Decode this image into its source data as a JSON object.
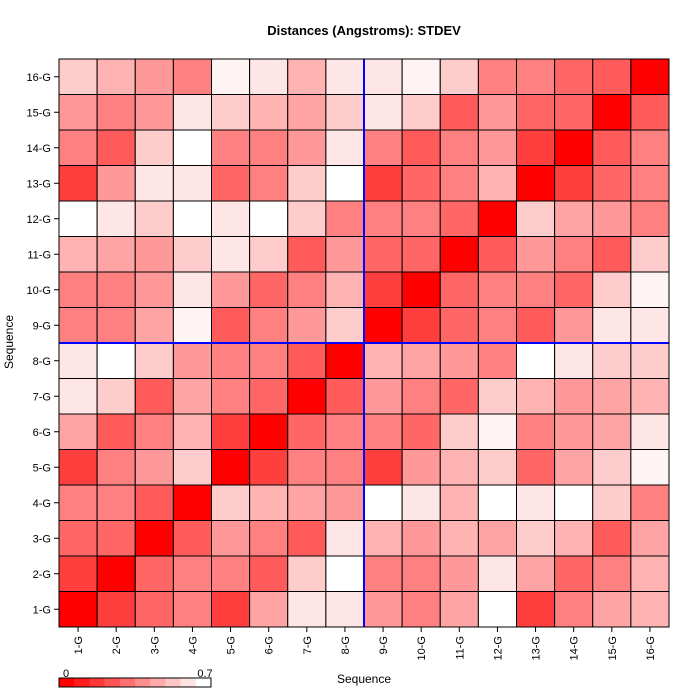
{
  "chart_data": {
    "type": "heatmap",
    "title": "Distances (Angstroms):  STDEV",
    "xlabel": "Sequence",
    "ylabel": "Sequence",
    "categories": [
      "1-G",
      "2-G",
      "3-G",
      "4-G",
      "5-G",
      "6-G",
      "7-G",
      "8-G",
      "9-G",
      "10-G",
      "11-G",
      "12-G",
      "13-G",
      "14-G",
      "15-G",
      "16-G"
    ],
    "value_range": [
      0,
      0.7
    ],
    "colorbar_labels": [
      "0",
      "0.7"
    ],
    "colorbar_steps": 10,
    "color_low": "#ff0000",
    "color_high": "#ffffff",
    "divider_after_index": 8,
    "divider_color": "#0000ff",
    "matrix_rows_bottom_to_top": [
      [
        0.0,
        0.17,
        0.28,
        0.35,
        0.17,
        0.45,
        0.63,
        0.63,
        0.42,
        0.35,
        0.45,
        0.7,
        0.17,
        0.35,
        0.45,
        0.49
      ],
      [
        0.17,
        0.0,
        0.28,
        0.35,
        0.35,
        0.25,
        0.56,
        0.7,
        0.35,
        0.35,
        0.42,
        0.63,
        0.45,
        0.28,
        0.35,
        0.49
      ],
      [
        0.28,
        0.28,
        0.0,
        0.25,
        0.42,
        0.35,
        0.25,
        0.63,
        0.49,
        0.42,
        0.49,
        0.45,
        0.56,
        0.49,
        0.25,
        0.45
      ],
      [
        0.35,
        0.35,
        0.25,
        0.0,
        0.56,
        0.49,
        0.45,
        0.42,
        0.7,
        0.63,
        0.49,
        0.7,
        0.63,
        0.7,
        0.56,
        0.35
      ],
      [
        0.17,
        0.35,
        0.42,
        0.56,
        0.0,
        0.17,
        0.35,
        0.35,
        0.17,
        0.42,
        0.49,
        0.56,
        0.28,
        0.45,
        0.56,
        0.67
      ],
      [
        0.45,
        0.25,
        0.35,
        0.49,
        0.17,
        0.0,
        0.28,
        0.35,
        0.35,
        0.28,
        0.56,
        0.67,
        0.35,
        0.42,
        0.45,
        0.63
      ],
      [
        0.63,
        0.56,
        0.25,
        0.45,
        0.35,
        0.28,
        0.0,
        0.25,
        0.42,
        0.35,
        0.28,
        0.56,
        0.49,
        0.42,
        0.45,
        0.49
      ],
      [
        0.63,
        0.7,
        0.56,
        0.42,
        0.35,
        0.35,
        0.25,
        0.0,
        0.49,
        0.45,
        0.42,
        0.35,
        0.7,
        0.63,
        0.56,
        0.56
      ],
      [
        0.35,
        0.35,
        0.45,
        0.67,
        0.25,
        0.35,
        0.42,
        0.56,
        0.0,
        0.17,
        0.28,
        0.35,
        0.25,
        0.42,
        0.63,
        0.63
      ],
      [
        0.35,
        0.35,
        0.42,
        0.63,
        0.42,
        0.28,
        0.35,
        0.49,
        0.17,
        0.0,
        0.28,
        0.35,
        0.35,
        0.28,
        0.56,
        0.67
      ],
      [
        0.49,
        0.45,
        0.42,
        0.56,
        0.63,
        0.56,
        0.25,
        0.42,
        0.28,
        0.28,
        0.0,
        0.25,
        0.42,
        0.35,
        0.25,
        0.56
      ],
      [
        0.7,
        0.63,
        0.56,
        0.7,
        0.63,
        0.7,
        0.56,
        0.35,
        0.35,
        0.35,
        0.28,
        0.0,
        0.56,
        0.45,
        0.42,
        0.35
      ],
      [
        0.17,
        0.42,
        0.63,
        0.63,
        0.28,
        0.35,
        0.56,
        0.7,
        0.17,
        0.28,
        0.35,
        0.49,
        0.0,
        0.17,
        0.28,
        0.35
      ],
      [
        0.35,
        0.25,
        0.56,
        0.7,
        0.35,
        0.35,
        0.42,
        0.63,
        0.35,
        0.25,
        0.35,
        0.42,
        0.17,
        0.0,
        0.25,
        0.35
      ],
      [
        0.42,
        0.35,
        0.42,
        0.63,
        0.56,
        0.49,
        0.45,
        0.56,
        0.63,
        0.56,
        0.25,
        0.42,
        0.28,
        0.28,
        0.0,
        0.25
      ],
      [
        0.56,
        0.49,
        0.42,
        0.35,
        0.67,
        0.63,
        0.49,
        0.63,
        0.63,
        0.67,
        0.56,
        0.35,
        0.35,
        0.28,
        0.25,
        0.0
      ]
    ]
  }
}
